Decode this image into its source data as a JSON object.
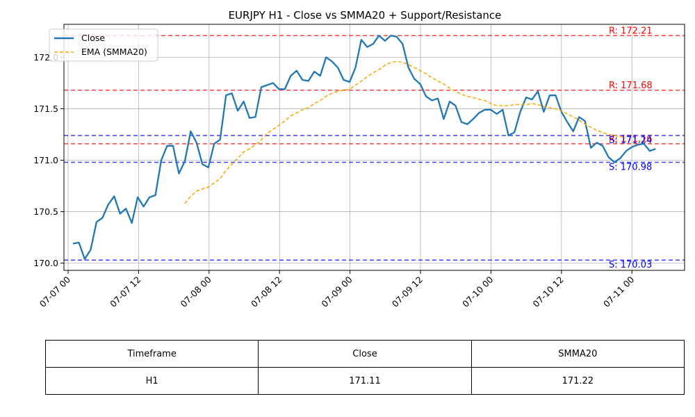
{
  "chart_data": {
    "type": "line",
    "title": "EURJPY H1 - Close vs SMMA20 + Support/Resistance",
    "xlabel": "",
    "ylabel": "",
    "ylim": [
      169.93,
      172.32
    ],
    "grid": true,
    "legend_position": "upper-left",
    "x_ticks": [
      "07-07 00",
      "07-07 12",
      "07-08 00",
      "07-08 12",
      "07-09 00",
      "07-09 12",
      "07-10 00",
      "07-10 12",
      "07-11 00"
    ],
    "y_ticks": [
      "170.0",
      "170.5",
      "171.0",
      "171.5",
      "172.0"
    ],
    "y_tick_values": [
      170.0,
      170.5,
      171.0,
      171.5,
      172.0
    ],
    "series": [
      {
        "name": "Close",
        "color": "#1f77b4",
        "style": "solid",
        "values": [
          170.19,
          170.2,
          170.04,
          170.13,
          170.4,
          170.44,
          170.57,
          170.65,
          170.48,
          170.53,
          170.39,
          170.64,
          170.55,
          170.64,
          170.66,
          171.0,
          171.14,
          171.14,
          170.87,
          170.99,
          171.28,
          171.17,
          170.96,
          170.93,
          171.16,
          171.2,
          171.63,
          171.65,
          171.48,
          171.57,
          171.41,
          171.42,
          171.71,
          171.73,
          171.75,
          171.69,
          171.69,
          171.82,
          171.87,
          171.78,
          171.77,
          171.86,
          171.82,
          172.0,
          171.96,
          171.9,
          171.78,
          171.76,
          171.9,
          172.17,
          172.1,
          172.13,
          172.21,
          172.16,
          172.21,
          172.2,
          172.13,
          171.9,
          171.79,
          171.74,
          171.62,
          171.58,
          171.6,
          171.4,
          171.57,
          171.53,
          171.37,
          171.35,
          171.4,
          171.46,
          171.49,
          171.49,
          171.45,
          171.49,
          171.24,
          171.27,
          171.47,
          171.61,
          171.59,
          171.67,
          171.47,
          171.63,
          171.63,
          171.47,
          171.37,
          171.28,
          171.42,
          171.38,
          171.12,
          171.17,
          171.14,
          171.03,
          170.98,
          171.02,
          171.09,
          171.13,
          171.15,
          171.16,
          171.09,
          171.11
        ]
      },
      {
        "name": "EMA (SMMA20)",
        "color": "#ffa500",
        "style": "dashed",
        "start_index": 19,
        "values": [
          170.58,
          170.65,
          170.7,
          170.72,
          170.74,
          170.78,
          170.82,
          170.9,
          170.96,
          171.02,
          171.08,
          171.11,
          171.15,
          171.2,
          171.26,
          171.3,
          171.34,
          171.38,
          171.43,
          171.46,
          171.49,
          171.51,
          171.55,
          171.58,
          171.62,
          171.65,
          171.67,
          171.68,
          171.69,
          171.73,
          171.77,
          171.81,
          171.85,
          171.88,
          171.92,
          171.95,
          171.96,
          171.95,
          171.93,
          171.9,
          171.87,
          171.84,
          171.8,
          171.77,
          171.74,
          171.7,
          171.67,
          171.64,
          171.62,
          171.61,
          171.59,
          171.58,
          171.55,
          171.53,
          171.53,
          171.53,
          171.54,
          171.54,
          171.54,
          171.55,
          171.54,
          171.52,
          171.51,
          171.5,
          171.48,
          171.45,
          171.42,
          171.39,
          171.35,
          171.32,
          171.29,
          171.27,
          171.25,
          171.24,
          171.23,
          171.22
        ]
      }
    ],
    "levels": [
      {
        "kind": "resistance",
        "value": 172.21,
        "label": "R: 172.21",
        "color": "#ff0000"
      },
      {
        "kind": "resistance",
        "value": 171.68,
        "label": "R: 171.68",
        "color": "#ff0000"
      },
      {
        "kind": "resistance",
        "value": 171.16,
        "label": "R: 171.16",
        "color": "#ff0000"
      },
      {
        "kind": "support",
        "value": 171.24,
        "label": "S: 171.24",
        "color": "#0000ff"
      },
      {
        "kind": "support",
        "value": 170.98,
        "label": "S: 170.98",
        "color": "#0000ff"
      },
      {
        "kind": "support",
        "value": 170.03,
        "label": "S: 170.03",
        "color": "#0000ff"
      }
    ]
  },
  "summary_table": {
    "headers": [
      "Timeframe",
      "Close",
      "SMMA20"
    ],
    "row": [
      "H1",
      "171.11",
      "171.22"
    ]
  }
}
